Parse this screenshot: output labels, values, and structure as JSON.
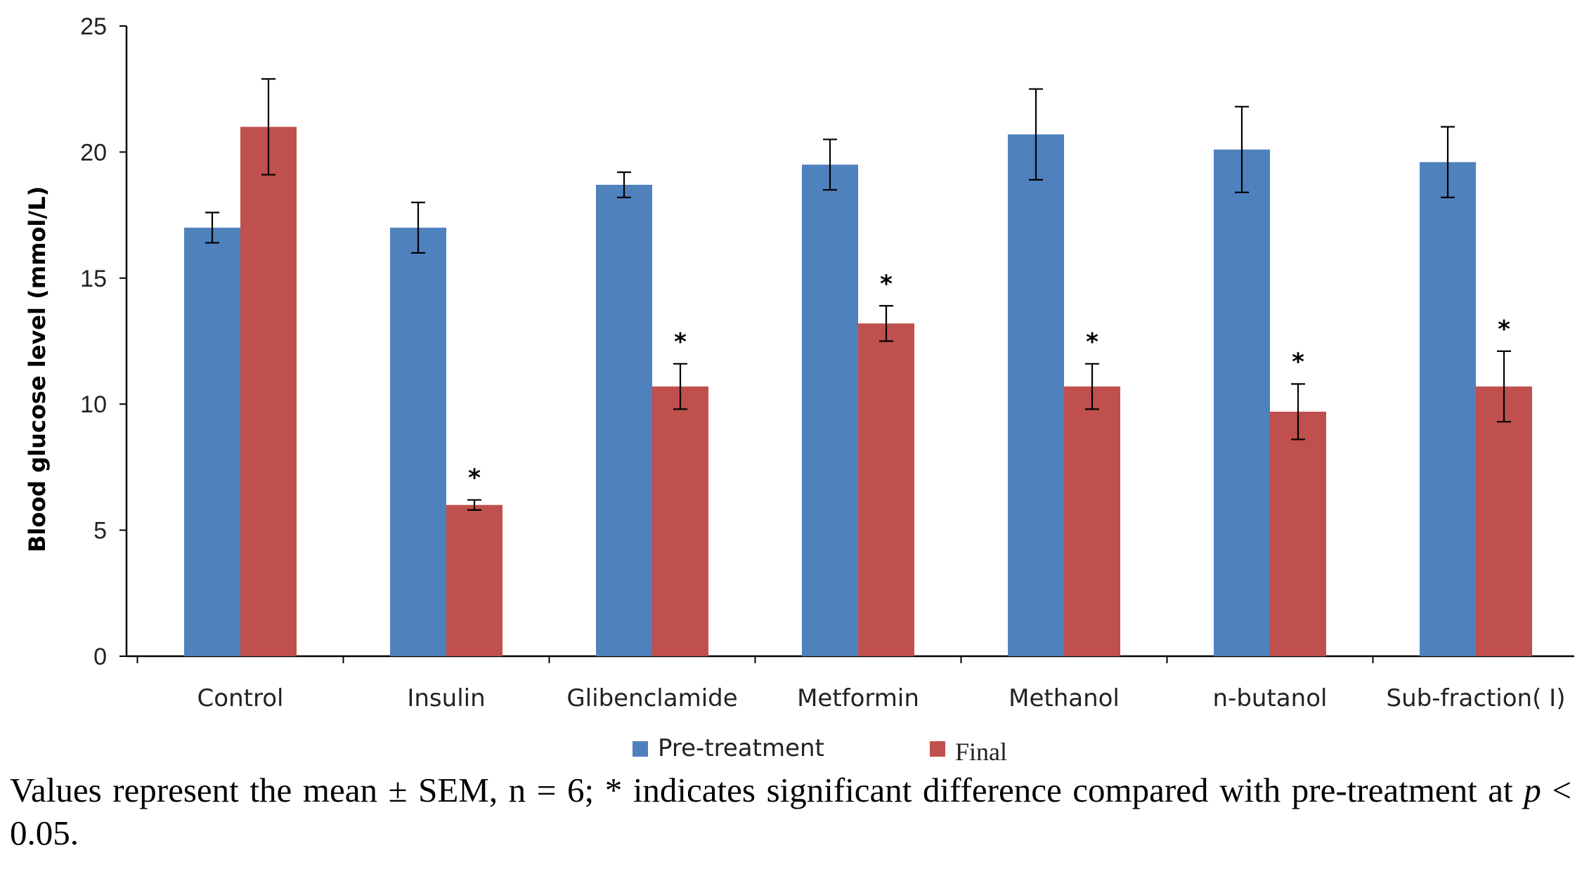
{
  "chart_data": {
    "type": "bar",
    "title": "",
    "xlabel": "",
    "ylabel": "Blood glucose level (mmol/L)",
    "ylim": [
      0,
      25
    ],
    "yticks": [
      0,
      5,
      10,
      15,
      20,
      25
    ],
    "grid": false,
    "legend_position": "bottom",
    "categories": [
      "Control",
      "Insulin",
      "Glibenclamide",
      "Metformin",
      "Methanol",
      "n-butanol",
      "Sub-fraction( I)"
    ],
    "series": [
      {
        "name": "Pre-treatment",
        "color": "#4f81bd",
        "values": [
          17.0,
          17.0,
          18.7,
          19.5,
          20.7,
          20.1,
          19.6
        ],
        "errors": [
          0.6,
          1.0,
          0.5,
          1.0,
          1.8,
          1.7,
          1.4
        ]
      },
      {
        "name": "Final",
        "color": "#c0504d",
        "values": [
          21.0,
          6.0,
          10.7,
          13.2,
          10.7,
          9.7,
          10.7
        ],
        "errors": [
          1.9,
          0.2,
          0.9,
          0.7,
          0.9,
          1.1,
          1.4
        ],
        "significance": [
          "",
          "*",
          "*",
          "*",
          "*",
          "*",
          "*"
        ]
      }
    ]
  },
  "caption": {
    "part1": "Values represent the mean ± SEM, n = 6; * indicates significant difference compared with pre-treatment at ",
    "p": "p",
    "part2": " < 0.05."
  }
}
